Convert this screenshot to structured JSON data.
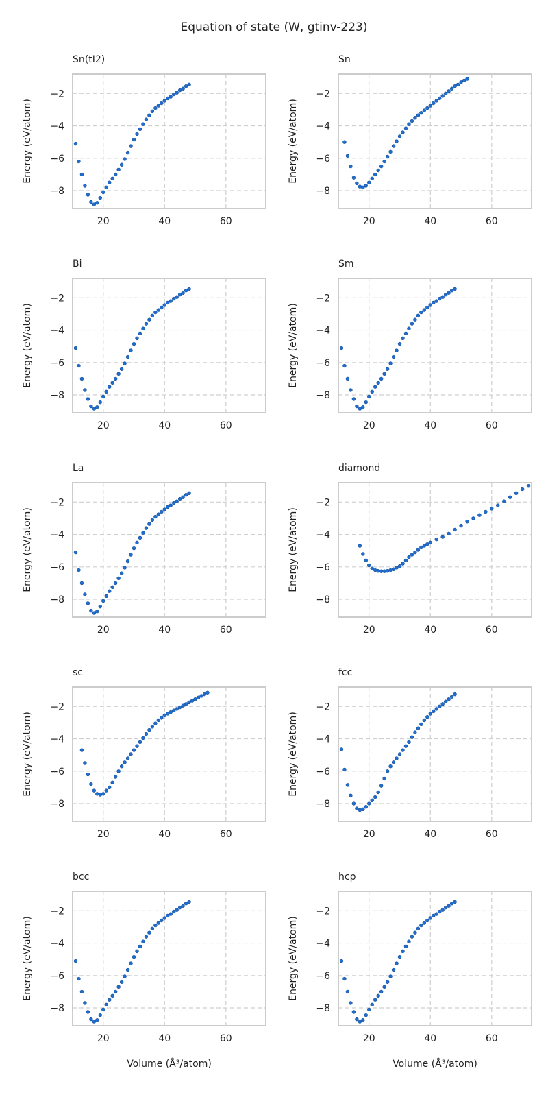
{
  "figure": {
    "title": "Equation of state (W, gtinv-223)"
  },
  "style": {
    "point_color": "#1f6fd1",
    "point_edge": "#1a4f9a",
    "grid_color": "#cfcfcf",
    "frame_color": "#cccccc"
  },
  "chart_data": [
    {
      "type": "scatter",
      "title": "Sn(tI2)",
      "xlabel": "",
      "ylabel": "Energy (eV/atom)",
      "xlim": [
        10,
        73
      ],
      "ylim": [
        -9.1,
        -0.8
      ],
      "xticks": [
        20,
        40,
        60
      ],
      "yticks": [
        -8,
        -6,
        -4,
        -2
      ],
      "grid": true,
      "x": [
        11,
        12,
        13,
        14,
        15,
        16,
        17,
        18,
        19,
        20,
        21,
        22,
        23,
        24,
        25,
        26,
        27,
        28,
        29,
        30,
        31,
        32,
        33,
        34,
        35,
        36,
        37,
        38,
        39,
        40,
        41,
        42,
        43,
        44,
        45,
        46,
        47,
        48
      ],
      "y": [
        -5.1,
        -6.2,
        -7.0,
        -7.7,
        -8.25,
        -8.7,
        -8.85,
        -8.75,
        -8.45,
        -8.1,
        -7.8,
        -7.5,
        -7.25,
        -7.0,
        -6.7,
        -6.4,
        -6.05,
        -5.65,
        -5.25,
        -4.85,
        -4.5,
        -4.2,
        -3.9,
        -3.6,
        -3.35,
        -3.1,
        -2.9,
        -2.75,
        -2.6,
        -2.45,
        -2.3,
        -2.2,
        -2.05,
        -1.95,
        -1.8,
        -1.7,
        -1.55,
        -1.45
      ]
    },
    {
      "type": "scatter",
      "title": "Sn",
      "xlabel": "",
      "ylabel": "Energy (eV/atom)",
      "xlim": [
        10,
        73
      ],
      "ylim": [
        -9.1,
        -0.8
      ],
      "xticks": [
        20,
        40,
        60
      ],
      "yticks": [
        -8,
        -6,
        -4,
        -2
      ],
      "grid": true,
      "x": [
        12,
        13,
        14,
        15,
        16,
        17,
        18,
        19,
        20,
        21,
        22,
        23,
        24,
        25,
        26,
        27,
        28,
        29,
        30,
        31,
        32,
        33,
        34,
        35,
        36,
        37,
        38,
        39,
        40,
        41,
        42,
        43,
        44,
        45,
        46,
        47,
        48,
        49,
        50,
        51,
        52
      ],
      "y": [
        -5.0,
        -5.85,
        -6.5,
        -7.2,
        -7.55,
        -7.75,
        -7.8,
        -7.7,
        -7.5,
        -7.25,
        -7.0,
        -6.75,
        -6.5,
        -6.2,
        -5.9,
        -5.6,
        -5.25,
        -4.95,
        -4.65,
        -4.4,
        -4.15,
        -3.9,
        -3.7,
        -3.5,
        -3.35,
        -3.2,
        -3.05,
        -2.9,
        -2.75,
        -2.6,
        -2.45,
        -2.3,
        -2.15,
        -2.0,
        -1.85,
        -1.7,
        -1.55,
        -1.45,
        -1.3,
        -1.2,
        -1.1
      ]
    },
    {
      "type": "scatter",
      "title": "Bi",
      "xlabel": "",
      "ylabel": "Energy (eV/atom)",
      "xlim": [
        10,
        73
      ],
      "ylim": [
        -9.1,
        -0.8
      ],
      "xticks": [
        20,
        40,
        60
      ],
      "yticks": [
        -8,
        -6,
        -4,
        -2
      ],
      "grid": true,
      "x": [
        11,
        12,
        13,
        14,
        15,
        16,
        17,
        18,
        19,
        20,
        21,
        22,
        23,
        24,
        25,
        26,
        27,
        28,
        29,
        30,
        31,
        32,
        33,
        34,
        35,
        36,
        37,
        38,
        39,
        40,
        41,
        42,
        43,
        44,
        45,
        46,
        47,
        48
      ],
      "y": [
        -5.1,
        -6.2,
        -7.0,
        -7.7,
        -8.25,
        -8.7,
        -8.85,
        -8.75,
        -8.45,
        -8.1,
        -7.8,
        -7.5,
        -7.25,
        -7.0,
        -6.7,
        -6.4,
        -6.05,
        -5.65,
        -5.25,
        -4.85,
        -4.5,
        -4.2,
        -3.9,
        -3.6,
        -3.35,
        -3.1,
        -2.9,
        -2.75,
        -2.6,
        -2.45,
        -2.3,
        -2.2,
        -2.05,
        -1.95,
        -1.8,
        -1.7,
        -1.55,
        -1.45
      ]
    },
    {
      "type": "scatter",
      "title": "Sm",
      "xlabel": "",
      "ylabel": "Energy (eV/atom)",
      "xlim": [
        10,
        73
      ],
      "ylim": [
        -9.1,
        -0.8
      ],
      "xticks": [
        20,
        40,
        60
      ],
      "yticks": [
        -8,
        -6,
        -4,
        -2
      ],
      "grid": true,
      "x": [
        11,
        12,
        13,
        14,
        15,
        16,
        17,
        18,
        19,
        20,
        21,
        22,
        23,
        24,
        25,
        26,
        27,
        28,
        29,
        30,
        31,
        32,
        33,
        34,
        35,
        36,
        37,
        38,
        39,
        40,
        41,
        42,
        43,
        44,
        45,
        46,
        47,
        48
      ],
      "y": [
        -5.1,
        -6.2,
        -7.0,
        -7.7,
        -8.25,
        -8.7,
        -8.85,
        -8.75,
        -8.45,
        -8.1,
        -7.8,
        -7.5,
        -7.25,
        -7.0,
        -6.7,
        -6.4,
        -6.05,
        -5.65,
        -5.25,
        -4.85,
        -4.5,
        -4.2,
        -3.9,
        -3.6,
        -3.35,
        -3.1,
        -2.9,
        -2.75,
        -2.6,
        -2.45,
        -2.3,
        -2.2,
        -2.05,
        -1.95,
        -1.8,
        -1.7,
        -1.55,
        -1.45
      ]
    },
    {
      "type": "scatter",
      "title": "La",
      "xlabel": "",
      "ylabel": "Energy (eV/atom)",
      "xlim": [
        10,
        73
      ],
      "ylim": [
        -9.1,
        -0.8
      ],
      "xticks": [
        20,
        40,
        60
      ],
      "yticks": [
        -8,
        -6,
        -4,
        -2
      ],
      "grid": true,
      "x": [
        11,
        12,
        13,
        14,
        15,
        16,
        17,
        18,
        19,
        20,
        21,
        22,
        23,
        24,
        25,
        26,
        27,
        28,
        29,
        30,
        31,
        32,
        33,
        34,
        35,
        36,
        37,
        38,
        39,
        40,
        41,
        42,
        43,
        44,
        45,
        46,
        47,
        48
      ],
      "y": [
        -5.1,
        -6.2,
        -7.0,
        -7.7,
        -8.25,
        -8.7,
        -8.85,
        -8.75,
        -8.45,
        -8.1,
        -7.8,
        -7.5,
        -7.25,
        -7.0,
        -6.7,
        -6.4,
        -6.05,
        -5.65,
        -5.25,
        -4.85,
        -4.5,
        -4.2,
        -3.9,
        -3.6,
        -3.35,
        -3.1,
        -2.9,
        -2.75,
        -2.6,
        -2.45,
        -2.3,
        -2.2,
        -2.05,
        -1.95,
        -1.8,
        -1.7,
        -1.55,
        -1.45
      ]
    },
    {
      "type": "scatter",
      "title": "diamond",
      "xlabel": "",
      "ylabel": "Energy (eV/atom)",
      "xlim": [
        10,
        73
      ],
      "ylim": [
        -9.1,
        -0.8
      ],
      "xticks": [
        20,
        40,
        60
      ],
      "yticks": [
        -8,
        -6,
        -4,
        -2
      ],
      "grid": true,
      "x": [
        17,
        18,
        19,
        20,
        21,
        22,
        23,
        24,
        25,
        26,
        27,
        28,
        29,
        30,
        31,
        32,
        33,
        34,
        35,
        36,
        37,
        38,
        39,
        40,
        42,
        44,
        46,
        48,
        50,
        52,
        54,
        56,
        58,
        60,
        62,
        64,
        66,
        68,
        70,
        72
      ],
      "y": [
        -4.7,
        -5.2,
        -5.6,
        -5.9,
        -6.1,
        -6.2,
        -6.25,
        -6.27,
        -6.27,
        -6.25,
        -6.2,
        -6.15,
        -6.05,
        -5.95,
        -5.8,
        -5.6,
        -5.4,
        -5.25,
        -5.1,
        -4.95,
        -4.8,
        -4.7,
        -4.6,
        -4.5,
        -4.3,
        -4.15,
        -3.95,
        -3.7,
        -3.45,
        -3.2,
        -3.0,
        -2.8,
        -2.6,
        -2.4,
        -2.2,
        -1.95,
        -1.7,
        -1.45,
        -1.2,
        -1.0
      ]
    },
    {
      "type": "scatter",
      "title": "sc",
      "xlabel": "",
      "ylabel": "Energy (eV/atom)",
      "xlim": [
        10,
        73
      ],
      "ylim": [
        -9.1,
        -0.8
      ],
      "xticks": [
        20,
        40,
        60
      ],
      "yticks": [
        -8,
        -6,
        -4,
        -2
      ],
      "grid": true,
      "x": [
        13,
        14,
        15,
        16,
        17,
        18,
        19,
        20,
        21,
        22,
        23,
        24,
        25,
        26,
        27,
        28,
        29,
        30,
        31,
        32,
        33,
        34,
        35,
        36,
        37,
        38,
        39,
        40,
        41,
        42,
        43,
        44,
        45,
        46,
        47,
        48,
        49,
        50,
        51,
        52,
        53,
        54
      ],
      "y": [
        -4.7,
        -5.5,
        -6.2,
        -6.8,
        -7.2,
        -7.4,
        -7.45,
        -7.4,
        -7.2,
        -7.0,
        -6.7,
        -6.35,
        -6.0,
        -5.7,
        -5.45,
        -5.2,
        -4.95,
        -4.7,
        -4.45,
        -4.2,
        -3.95,
        -3.7,
        -3.45,
        -3.25,
        -3.05,
        -2.85,
        -2.7,
        -2.55,
        -2.45,
        -2.35,
        -2.25,
        -2.15,
        -2.05,
        -1.95,
        -1.85,
        -1.75,
        -1.65,
        -1.55,
        -1.45,
        -1.35,
        -1.25,
        -1.15
      ]
    },
    {
      "type": "scatter",
      "title": "fcc",
      "xlabel": "",
      "ylabel": "Energy (eV/atom)",
      "xlim": [
        10,
        73
      ],
      "ylim": [
        -9.1,
        -0.8
      ],
      "xticks": [
        20,
        40,
        60
      ],
      "yticks": [
        -8,
        -6,
        -4,
        -2
      ],
      "grid": true,
      "x": [
        11,
        12,
        13,
        14,
        15,
        16,
        17,
        18,
        19,
        20,
        21,
        22,
        23,
        24,
        25,
        26,
        27,
        28,
        29,
        30,
        31,
        32,
        33,
        34,
        35,
        36,
        37,
        38,
        39,
        40,
        41,
        42,
        43,
        44,
        45,
        46,
        47,
        48
      ],
      "y": [
        -4.65,
        -5.9,
        -6.85,
        -7.5,
        -8.0,
        -8.3,
        -8.4,
        -8.35,
        -8.2,
        -8.0,
        -7.8,
        -7.6,
        -7.3,
        -6.9,
        -6.45,
        -6.0,
        -5.7,
        -5.45,
        -5.2,
        -4.95,
        -4.7,
        -4.45,
        -4.2,
        -3.9,
        -3.6,
        -3.35,
        -3.1,
        -2.85,
        -2.65,
        -2.45,
        -2.3,
        -2.15,
        -2.0,
        -1.85,
        -1.7,
        -1.55,
        -1.4,
        -1.25
      ]
    },
    {
      "type": "scatter",
      "title": "bcc",
      "xlabel": "Volume (Å³/atom)",
      "ylabel": "Energy (eV/atom)",
      "xlim": [
        10,
        73
      ],
      "ylim": [
        -9.1,
        -0.8
      ],
      "xticks": [
        20,
        40,
        60
      ],
      "yticks": [
        -8,
        -6,
        -4,
        -2
      ],
      "grid": true,
      "x": [
        11,
        12,
        13,
        14,
        15,
        16,
        17,
        18,
        19,
        20,
        21,
        22,
        23,
        24,
        25,
        26,
        27,
        28,
        29,
        30,
        31,
        32,
        33,
        34,
        35,
        36,
        37,
        38,
        39,
        40,
        41,
        42,
        43,
        44,
        45,
        46,
        47,
        48
      ],
      "y": [
        -5.1,
        -6.2,
        -7.0,
        -7.7,
        -8.25,
        -8.7,
        -8.85,
        -8.75,
        -8.45,
        -8.1,
        -7.8,
        -7.5,
        -7.25,
        -7.0,
        -6.7,
        -6.4,
        -6.05,
        -5.65,
        -5.25,
        -4.85,
        -4.5,
        -4.2,
        -3.9,
        -3.6,
        -3.35,
        -3.1,
        -2.9,
        -2.75,
        -2.6,
        -2.45,
        -2.3,
        -2.2,
        -2.05,
        -1.95,
        -1.8,
        -1.7,
        -1.55,
        -1.45
      ]
    },
    {
      "type": "scatter",
      "title": "hcp",
      "xlabel": "Volume (Å³/atom)",
      "ylabel": "Energy (eV/atom)",
      "xlim": [
        10,
        73
      ],
      "ylim": [
        -9.1,
        -0.8
      ],
      "xticks": [
        20,
        40,
        60
      ],
      "yticks": [
        -8,
        -6,
        -4,
        -2
      ],
      "grid": true,
      "x": [
        11,
        12,
        13,
        14,
        15,
        16,
        17,
        18,
        19,
        20,
        21,
        22,
        23,
        24,
        25,
        26,
        27,
        28,
        29,
        30,
        31,
        32,
        33,
        34,
        35,
        36,
        37,
        38,
        39,
        40,
        41,
        42,
        43,
        44,
        45,
        46,
        47,
        48
      ],
      "y": [
        -5.1,
        -6.2,
        -7.0,
        -7.7,
        -8.25,
        -8.7,
        -8.85,
        -8.75,
        -8.45,
        -8.1,
        -7.8,
        -7.5,
        -7.25,
        -7.0,
        -6.7,
        -6.4,
        -6.05,
        -5.65,
        -5.25,
        -4.85,
        -4.5,
        -4.2,
        -3.9,
        -3.6,
        -3.35,
        -3.1,
        -2.9,
        -2.75,
        -2.6,
        -2.45,
        -2.3,
        -2.2,
        -2.05,
        -1.95,
        -1.8,
        -1.7,
        -1.55,
        -1.45
      ]
    }
  ]
}
